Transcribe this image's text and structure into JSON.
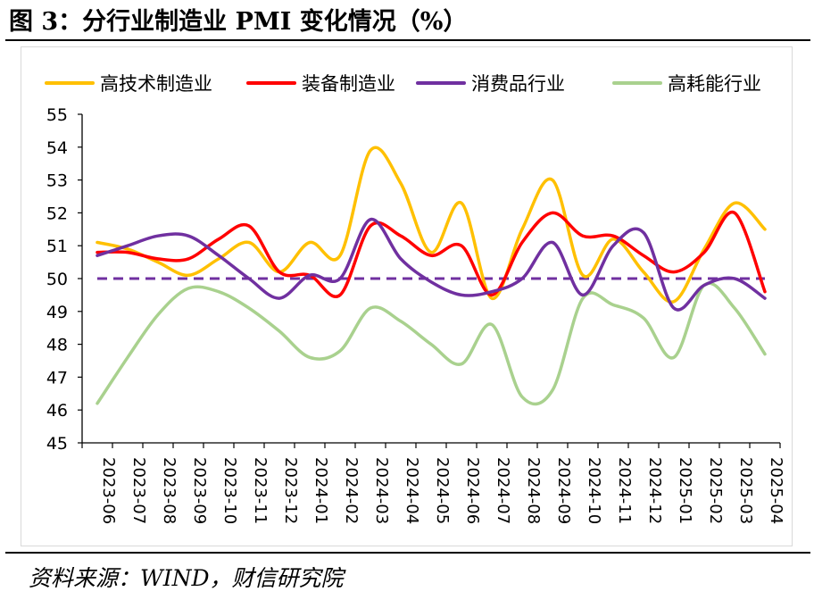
{
  "figure": {
    "title": "图 3：分行业制造业 PMI 变化情况（%）",
    "source": "资料来源：WIND，财信研究院"
  },
  "chart_data": {
    "type": "line",
    "categories": [
      "2023-06",
      "2023-07",
      "2023-08",
      "2023-09",
      "2023-10",
      "2023-11",
      "2023-12",
      "2024-01",
      "2024-02",
      "2024-03",
      "2024-04",
      "2024-05",
      "2024-06",
      "2024-07",
      "2024-08",
      "2024-09",
      "2024-10",
      "2024-11",
      "2024-12",
      "2025-01",
      "2025-02",
      "2025-03",
      "2025-04"
    ],
    "series": [
      {
        "name": "高技术制造业",
        "color": "#FFC000",
        "values": [
          51.1,
          50.9,
          50.5,
          50.1,
          50.6,
          51.1,
          50.2,
          51.1,
          50.7,
          53.9,
          52.9,
          50.8,
          52.3,
          49.4,
          51.5,
          53.0,
          50.1,
          51.2,
          50.2,
          49.3,
          50.9,
          52.3,
          51.5
        ]
      },
      {
        "name": "装备制造业",
        "color": "#FF0000",
        "values": [
          50.8,
          50.8,
          50.6,
          50.6,
          51.2,
          51.6,
          50.2,
          50.1,
          49.5,
          51.6,
          51.3,
          50.7,
          51.0,
          49.5,
          51.1,
          52.0,
          51.3,
          51.3,
          50.7,
          50.2,
          50.8,
          52.0,
          49.6
        ]
      },
      {
        "name": "消费品行业",
        "color": "#7030A0",
        "values": [
          50.7,
          51.0,
          51.3,
          51.3,
          50.7,
          50.0,
          49.4,
          50.1,
          50.0,
          51.8,
          50.6,
          49.9,
          49.5,
          49.6,
          50.0,
          51.1,
          49.5,
          51.0,
          51.4,
          49.1,
          49.8,
          50.0,
          49.4
        ]
      },
      {
        "name": "高耗能行业",
        "color": "#A9D18E",
        "values": [
          46.2,
          47.6,
          48.9,
          49.7,
          49.6,
          49.1,
          48.4,
          47.6,
          47.8,
          49.1,
          48.7,
          48.0,
          47.4,
          48.6,
          46.4,
          46.6,
          49.4,
          49.2,
          48.8,
          47.6,
          49.8,
          49.1,
          47.7
        ]
      }
    ],
    "reference_line": {
      "value": 50,
      "color": "#7030A0",
      "style": "dashed"
    },
    "ylim": [
      45,
      55
    ],
    "yticks": [
      45,
      46,
      47,
      48,
      49,
      50,
      51,
      52,
      53,
      54,
      55
    ],
    "xlabel": "",
    "ylabel": "",
    "legend_position": "top",
    "grid": false
  }
}
